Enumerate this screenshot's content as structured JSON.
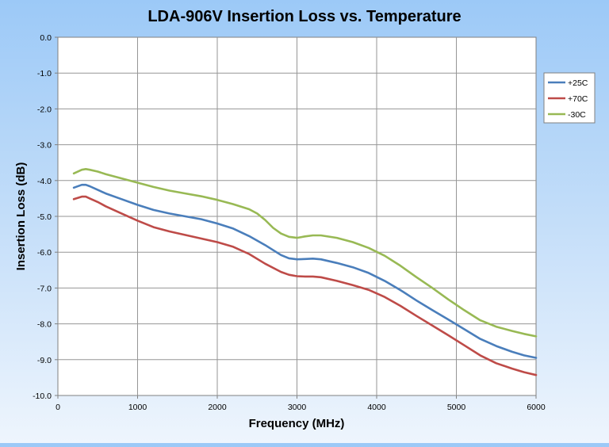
{
  "chart_data": {
    "type": "line",
    "title": "LDA-906V Insertion Loss vs. Temperature",
    "xlabel": "Frequency (MHz)",
    "ylabel": "Insertion Loss (dB)",
    "xlim": [
      0,
      6000
    ],
    "ylim": [
      -10.0,
      0.0
    ],
    "x_ticks": [
      "0",
      "1000",
      "2000",
      "3000",
      "4000",
      "5000",
      "6000"
    ],
    "y_ticks": [
      "0.0",
      "-1.0",
      "-2.0",
      "-3.0",
      "-4.0",
      "-5.0",
      "-6.0",
      "-7.0",
      "-8.0",
      "-9.0",
      "-10.0"
    ],
    "grid": true,
    "legend_position": "right",
    "plot_background": "#ffffff",
    "series": [
      {
        "name": "+25C",
        "color": "#4a7ebb",
        "points": [
          [
            200,
            -4.2
          ],
          [
            300,
            -4.12
          ],
          [
            350,
            -4.12
          ],
          [
            400,
            -4.16
          ],
          [
            500,
            -4.26
          ],
          [
            600,
            -4.36
          ],
          [
            800,
            -4.52
          ],
          [
            1000,
            -4.68
          ],
          [
            1200,
            -4.82
          ],
          [
            1400,
            -4.92
          ],
          [
            1600,
            -5.0
          ],
          [
            1800,
            -5.08
          ],
          [
            2000,
            -5.2
          ],
          [
            2200,
            -5.34
          ],
          [
            2400,
            -5.55
          ],
          [
            2600,
            -5.8
          ],
          [
            2800,
            -6.08
          ],
          [
            2900,
            -6.17
          ],
          [
            3000,
            -6.2
          ],
          [
            3100,
            -6.19
          ],
          [
            3200,
            -6.18
          ],
          [
            3300,
            -6.2
          ],
          [
            3500,
            -6.3
          ],
          [
            3700,
            -6.42
          ],
          [
            3900,
            -6.58
          ],
          [
            4100,
            -6.8
          ],
          [
            4300,
            -7.06
          ],
          [
            4500,
            -7.35
          ],
          [
            4700,
            -7.62
          ],
          [
            4900,
            -7.88
          ],
          [
            5100,
            -8.15
          ],
          [
            5300,
            -8.42
          ],
          [
            5500,
            -8.62
          ],
          [
            5700,
            -8.78
          ],
          [
            5850,
            -8.88
          ],
          [
            6000,
            -8.95
          ]
        ]
      },
      {
        "name": "+70C",
        "color": "#be4b48",
        "points": [
          [
            200,
            -4.52
          ],
          [
            300,
            -4.45
          ],
          [
            350,
            -4.45
          ],
          [
            400,
            -4.5
          ],
          [
            500,
            -4.6
          ],
          [
            600,
            -4.72
          ],
          [
            800,
            -4.92
          ],
          [
            1000,
            -5.12
          ],
          [
            1200,
            -5.3
          ],
          [
            1400,
            -5.42
          ],
          [
            1600,
            -5.52
          ],
          [
            1800,
            -5.62
          ],
          [
            2000,
            -5.72
          ],
          [
            2200,
            -5.85
          ],
          [
            2400,
            -6.05
          ],
          [
            2600,
            -6.32
          ],
          [
            2800,
            -6.55
          ],
          [
            2900,
            -6.63
          ],
          [
            3000,
            -6.67
          ],
          [
            3100,
            -6.68
          ],
          [
            3200,
            -6.68
          ],
          [
            3300,
            -6.7
          ],
          [
            3500,
            -6.8
          ],
          [
            3700,
            -6.92
          ],
          [
            3900,
            -7.05
          ],
          [
            4100,
            -7.25
          ],
          [
            4300,
            -7.5
          ],
          [
            4500,
            -7.78
          ],
          [
            4700,
            -8.05
          ],
          [
            4900,
            -8.32
          ],
          [
            5100,
            -8.6
          ],
          [
            5300,
            -8.88
          ],
          [
            5500,
            -9.1
          ],
          [
            5700,
            -9.25
          ],
          [
            5850,
            -9.35
          ],
          [
            6000,
            -9.43
          ]
        ]
      },
      {
        "name": "-30C",
        "color": "#98b954",
        "points": [
          [
            200,
            -3.8
          ],
          [
            300,
            -3.7
          ],
          [
            350,
            -3.68
          ],
          [
            400,
            -3.7
          ],
          [
            500,
            -3.75
          ],
          [
            600,
            -3.82
          ],
          [
            800,
            -3.94
          ],
          [
            1000,
            -4.06
          ],
          [
            1200,
            -4.18
          ],
          [
            1400,
            -4.28
          ],
          [
            1600,
            -4.36
          ],
          [
            1800,
            -4.44
          ],
          [
            2000,
            -4.54
          ],
          [
            2200,
            -4.66
          ],
          [
            2400,
            -4.8
          ],
          [
            2500,
            -4.92
          ],
          [
            2600,
            -5.1
          ],
          [
            2700,
            -5.32
          ],
          [
            2800,
            -5.48
          ],
          [
            2900,
            -5.57
          ],
          [
            3000,
            -5.6
          ],
          [
            3100,
            -5.56
          ],
          [
            3200,
            -5.53
          ],
          [
            3300,
            -5.53
          ],
          [
            3500,
            -5.6
          ],
          [
            3700,
            -5.72
          ],
          [
            3900,
            -5.88
          ],
          [
            4100,
            -6.1
          ],
          [
            4300,
            -6.38
          ],
          [
            4500,
            -6.7
          ],
          [
            4700,
            -7.0
          ],
          [
            4900,
            -7.32
          ],
          [
            5100,
            -7.62
          ],
          [
            5300,
            -7.9
          ],
          [
            5500,
            -8.08
          ],
          [
            5700,
            -8.2
          ],
          [
            5850,
            -8.28
          ],
          [
            6000,
            -8.35
          ]
        ]
      }
    ]
  }
}
